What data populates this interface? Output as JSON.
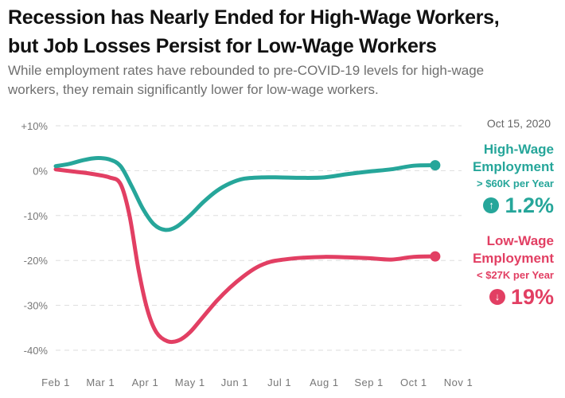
{
  "header": {
    "title_line1": "Recession has Nearly Ended for High-Wage Workers,",
    "title_line2": "but Job Losses Persist for Low-Wage Workers",
    "subtitle_line1": "While employment rates have rebounded to pre-COVID-19 levels for high-wage",
    "subtitle_line2": "workers, they remain significantly lower for low-wage workers."
  },
  "annotation": {
    "date": "Oct 15, 2020"
  },
  "legend": {
    "high": {
      "name_line1": "High-Wage",
      "name_line2": "Employment",
      "sub": "> $60K per Year",
      "value": "1.2%",
      "direction_icon": "arrow-up-circle-icon",
      "arrow_glyph": "↑",
      "color": "#26a69a"
    },
    "low": {
      "name_line1": "Low-Wage",
      "name_line2": "Employment",
      "sub": "< $27K per Year",
      "value": "19%",
      "direction_icon": "arrow-down-circle-icon",
      "arrow_glyph": "↓",
      "color": "#e23f63"
    }
  },
  "chart_data": {
    "type": "line",
    "title": "Recession has Nearly Ended for High-Wage Workers, but Job Losses Persist for Low-Wage Workers",
    "xlabel": "",
    "ylabel": "",
    "x_ticks": [
      "Feb 1",
      "Mar 1",
      "Apr 1",
      "May 1",
      "Jun 1",
      "Jul 1",
      "Aug 1",
      "Sep 1",
      "Oct 1",
      "Nov 1"
    ],
    "y_ticks": [
      "+10%",
      "0%",
      "-10%",
      "-20%",
      "-30%",
      "-40%"
    ],
    "y_tick_values": [
      10,
      0,
      -10,
      -20,
      -30,
      -40
    ],
    "ylim": [
      -40,
      10
    ],
    "xlim_months": [
      0,
      9
    ],
    "grid": "horizontal-dashed",
    "legend_placement": "right",
    "series": [
      {
        "name": "High-Wage Employment (> $60K per Year)",
        "color": "#26a69a",
        "x_months": [
          0,
          0.3,
          0.6,
          0.9,
          1.2,
          1.45,
          1.7,
          1.95,
          2.2,
          2.45,
          2.7,
          3.0,
          3.3,
          3.6,
          3.9,
          4.2,
          4.6,
          5.0,
          5.5,
          6.0,
          6.5,
          7.0,
          7.5,
          8.0,
          8.5
        ],
        "values": [
          1.0,
          1.5,
          2.3,
          2.8,
          2.5,
          1.0,
          -3.5,
          -8.5,
          -12.0,
          -13.2,
          -12.5,
          -10.0,
          -7.0,
          -4.5,
          -2.8,
          -1.8,
          -1.5,
          -1.5,
          -1.6,
          -1.5,
          -0.8,
          -0.2,
          0.3,
          1.1,
          1.2
        ]
      },
      {
        "name": "Low-Wage Employment (< $27K per Year)",
        "color": "#e23f63",
        "x_months": [
          0,
          0.4,
          0.8,
          1.2,
          1.45,
          1.65,
          1.85,
          2.05,
          2.25,
          2.5,
          2.75,
          3.0,
          3.3,
          3.6,
          3.9,
          4.2,
          4.5,
          4.8,
          5.1,
          5.5,
          6.0,
          6.5,
          7.0,
          7.5,
          8.0,
          8.5
        ],
        "values": [
          0.3,
          -0.2,
          -0.7,
          -1.5,
          -3.0,
          -10.0,
          -22.0,
          -31.0,
          -36.0,
          -38.0,
          -37.8,
          -36.0,
          -32.5,
          -29.0,
          -26.0,
          -23.5,
          -21.5,
          -20.3,
          -19.8,
          -19.4,
          -19.2,
          -19.3,
          -19.5,
          -19.8,
          -19.2,
          -19.1
        ]
      }
    ]
  }
}
